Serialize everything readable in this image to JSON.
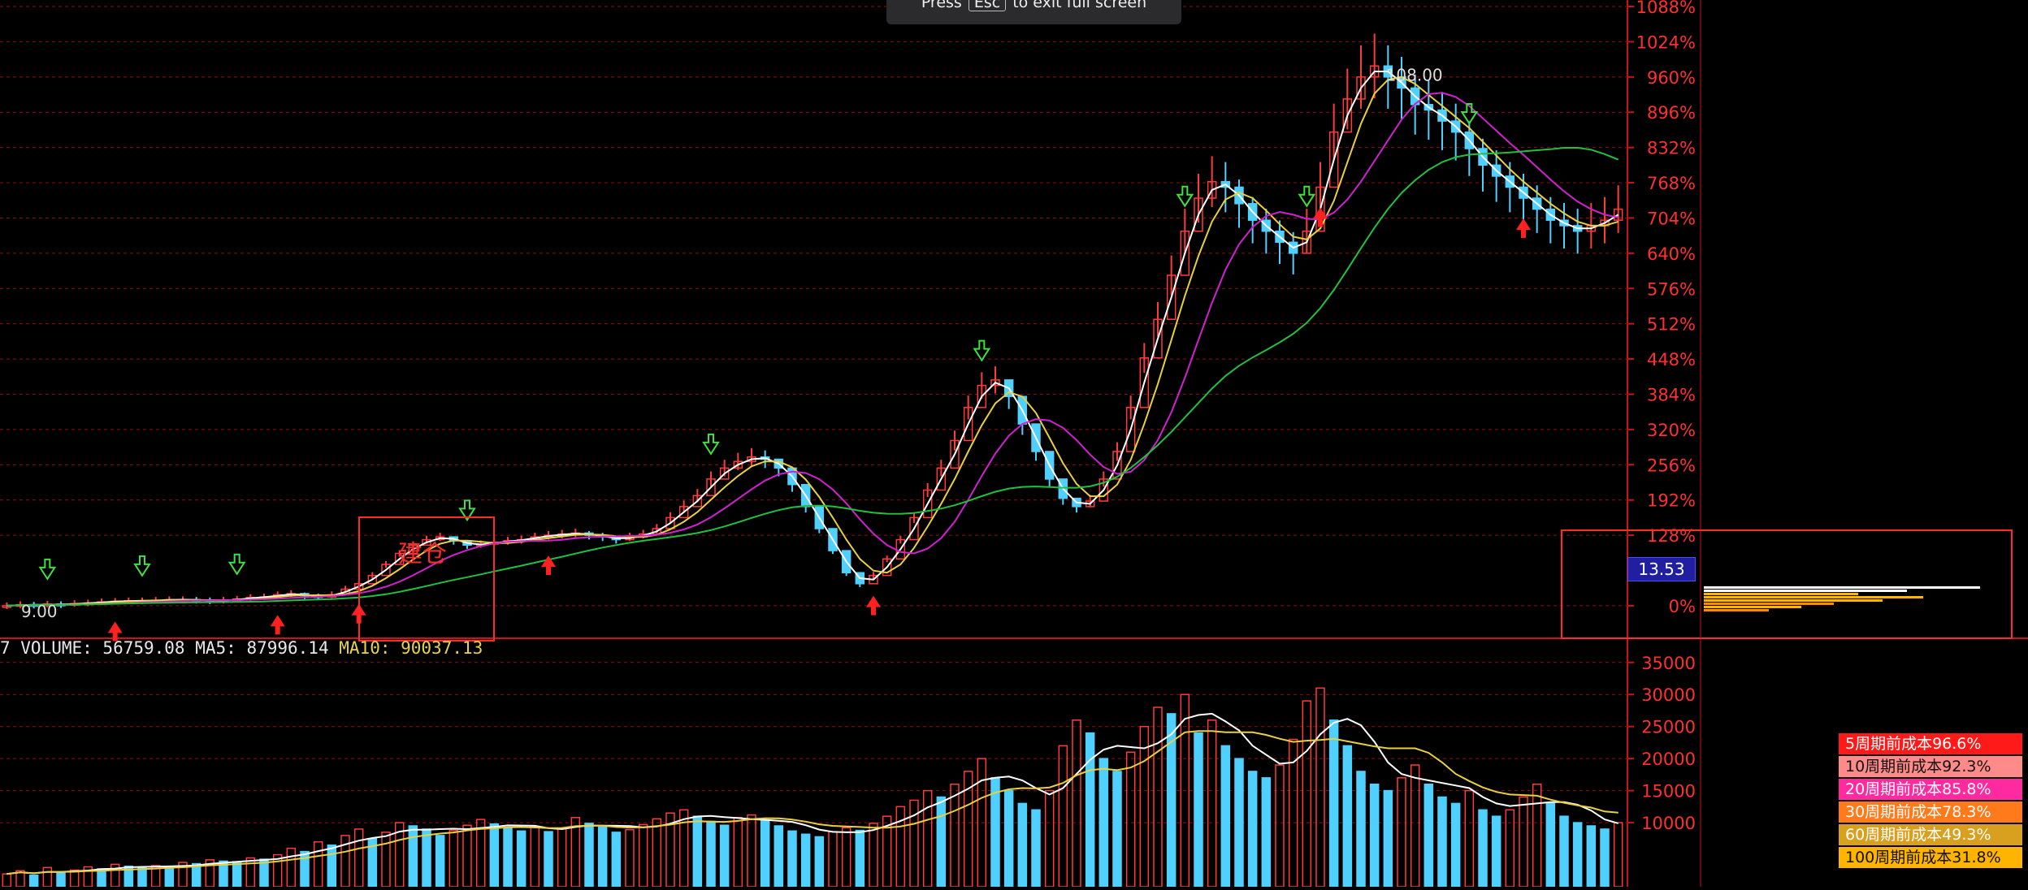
{
  "toast": {
    "press": "Press",
    "key": "Esc",
    "rest": "to exit full screen"
  },
  "annotation": {
    "label": "建仓"
  },
  "price_tag": "13.53",
  "low_label": "9.00",
  "high_label": "108.00",
  "volume_header": {
    "volume": "7 VOLUME: 56759.08",
    "ma5": "MA5: 87996.14",
    "ma10": "MA10: 90037.13"
  },
  "cost_legend": [
    {
      "label": "5周期前成本96.6%",
      "color": "#ff1a1a"
    },
    {
      "label": "10周期前成本92.3%",
      "color": "#ff8a8a"
    },
    {
      "label": "20周期前成本85.8%",
      "color": "#ff2aa0"
    },
    {
      "label": "30周期前成本78.3%",
      "color": "#ff7a1a"
    },
    {
      "label": "60周期前成本49.3%",
      "color": "#d9a020"
    },
    {
      "label": "100周期前成本31.8%",
      "color": "#ffb400"
    }
  ],
  "colors": {
    "grid": "#8a1010",
    "axis": "#c81414",
    "up": "#ff3b3b",
    "down": "#4fd0ff",
    "ma_white": "#ffffff",
    "ma_yellow": "#e8d040",
    "ma_magenta": "#d020d0",
    "ma_green": "#20c040"
  },
  "chart_data": [
    {
      "type": "line",
      "ylim": [
        -6,
        1088
      ],
      "y_ticks": [
        "1088%",
        "1024%",
        "960%",
        "896%",
        "832%",
        "768%",
        "704%",
        "640%",
        "576%",
        "512%",
        "448%",
        "384%",
        "320%",
        "256%",
        "192%",
        "128%",
        "0%"
      ],
      "y_tick_values": [
        1088,
        1024,
        960,
        896,
        832,
        768,
        704,
        640,
        576,
        512,
        448,
        384,
        320,
        256,
        192,
        128,
        0
      ],
      "grid": true,
      "series": [
        {
          "values": [
            0,
            2,
            1,
            3,
            2,
            4,
            5,
            7,
            8,
            9,
            9,
            10,
            11,
            11,
            10,
            9,
            10,
            12,
            15,
            16,
            20,
            22,
            18,
            16,
            20,
            30,
            40,
            55,
            75,
            95,
            110,
            120,
            125,
            118,
            110,
            112,
            115,
            118,
            120,
            125,
            128,
            130,
            132,
            128,
            125,
            120,
            125,
            130,
            140,
            160,
            180,
            200,
            230,
            250,
            262,
            270,
            266,
            250,
            220,
            180,
            140,
            100,
            60,
            40,
            55,
            85,
            120,
            160,
            210,
            250,
            300,
            360,
            400,
            410,
            380,
            330,
            280,
            230,
            195,
            180,
            190,
            230,
            280,
            360,
            450,
            520,
            600,
            680,
            740,
            770,
            760,
            730,
            700,
            680,
            660,
            640,
            680,
            760,
            860,
            920,
            960,
            980,
            960,
            940,
            910,
            900,
            880,
            860,
            830,
            800,
            780,
            760,
            740,
            720,
            700,
            690,
            680,
            690,
            700,
            720
          ]
        }
      ]
    },
    {
      "type": "bar",
      "ylim": [
        0,
        37000
      ],
      "y_ticks": [
        "35000",
        "30000",
        "25000",
        "20000",
        "15000",
        "10000"
      ],
      "y_tick_values": [
        35000,
        30000,
        25000,
        20000,
        15000,
        10000
      ],
      "grid": true,
      "values": [
        2000,
        2500,
        1800,
        3000,
        2200,
        2600,
        3100,
        2800,
        3500,
        3200,
        2900,
        3300,
        3000,
        3800,
        3600,
        4200,
        4000,
        3900,
        4500,
        4300,
        5000,
        6000,
        5500,
        7000,
        6500,
        8000,
        9000,
        7500,
        8500,
        10000,
        9500,
        9000,
        8000,
        8800,
        9600,
        10500,
        9800,
        9200,
        8700,
        9400,
        8600,
        9100,
        10800,
        9900,
        9300,
        8500,
        8900,
        9700,
        10600,
        11500,
        12000,
        11000,
        10200,
        9600,
        10800,
        11200,
        10400,
        9500,
        8700,
        8200,
        7800,
        8600,
        9200,
        8800,
        9900,
        11000,
        12500,
        13500,
        15000,
        14000,
        16000,
        18000,
        20000,
        17000,
        15000,
        13000,
        12000,
        15000,
        22000,
        26000,
        24000,
        20000,
        18000,
        21000,
        25000,
        28000,
        27000,
        30000,
        24000,
        26000,
        22000,
        20000,
        18000,
        17000,
        19000,
        23000,
        29000,
        31000,
        26000,
        22000,
        18000,
        16000,
        15000,
        17000,
        19000,
        16000,
        14000,
        13000,
        15000,
        12000,
        11000,
        12000,
        14000,
        16000,
        13000,
        11000,
        10000,
        9500,
        9000,
        10000
      ]
    }
  ]
}
